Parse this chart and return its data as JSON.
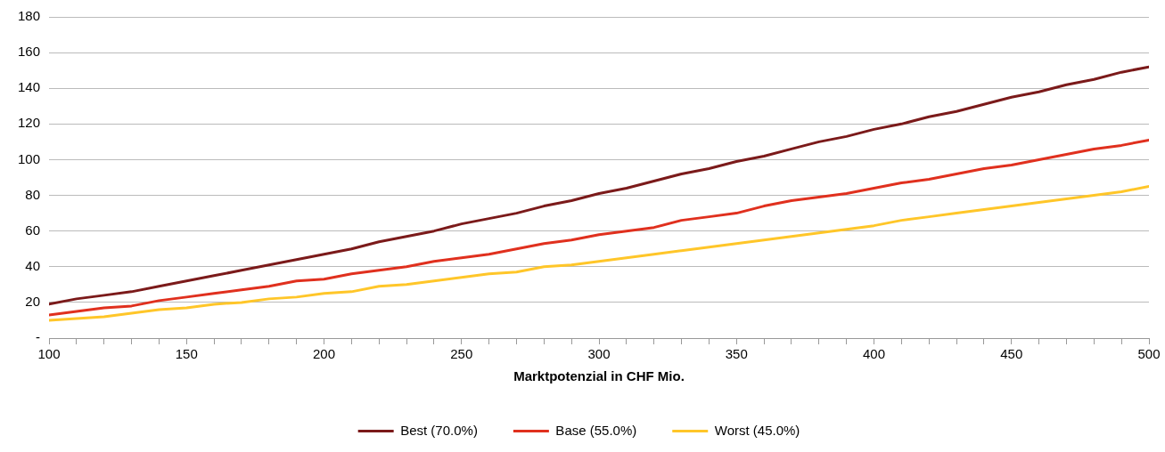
{
  "chart_data": {
    "type": "line",
    "xlabel": "Marktpotenzial in CHF Mio.",
    "x": [
      100,
      110,
      120,
      130,
      140,
      150,
      160,
      170,
      180,
      190,
      200,
      210,
      220,
      230,
      240,
      250,
      260,
      270,
      280,
      290,
      300,
      310,
      320,
      330,
      340,
      350,
      360,
      370,
      380,
      390,
      400,
      410,
      420,
      430,
      440,
      450,
      460,
      470,
      480,
      490,
      500
    ],
    "series": [
      {
        "name": "Best (70.0%)",
        "color": "#7b1a1a",
        "values": [
          19,
          22,
          24,
          26,
          29,
          32,
          35,
          38,
          41,
          44,
          47,
          50,
          54,
          57,
          60,
          64,
          67,
          70,
          74,
          77,
          81,
          84,
          88,
          92,
          95,
          99,
          102,
          106,
          110,
          113,
          117,
          120,
          124,
          127,
          131,
          135,
          138,
          142,
          145,
          149,
          152
        ]
      },
      {
        "name": "Base (55.0%)",
        "color": "#e0301e",
        "values": [
          13,
          15,
          17,
          18,
          21,
          23,
          25,
          27,
          29,
          32,
          33,
          36,
          38,
          40,
          43,
          45,
          47,
          50,
          53,
          55,
          58,
          60,
          62,
          66,
          68,
          70,
          74,
          77,
          79,
          81,
          84,
          87,
          89,
          92,
          95,
          97,
          100,
          103,
          106,
          108,
          111
        ]
      },
      {
        "name": "Worst (45.0%)",
        "color": "#ffc629",
        "values": [
          10,
          11,
          12,
          14,
          16,
          17,
          19,
          20,
          22,
          23,
          25,
          26,
          29,
          30,
          32,
          34,
          36,
          37,
          40,
          41,
          43,
          45,
          47,
          49,
          51,
          53,
          55,
          57,
          59,
          61,
          63,
          66,
          68,
          70,
          72,
          74,
          76,
          78,
          80,
          82,
          85
        ]
      }
    ],
    "xlim": [
      100,
      500
    ],
    "xticks": [
      100,
      {
        "value": 110,
        "label": null
      },
      {
        "value": 120,
        "label": null
      },
      {
        "value": 130,
        "label": null
      },
      {
        "value": 140,
        "label": null
      },
      150,
      {
        "value": 160,
        "label": null
      },
      {
        "value": 170,
        "label": null
      },
      {
        "value": 180,
        "label": null
      },
      {
        "value": 190,
        "label": null
      },
      200,
      {
        "value": 210,
        "label": null
      },
      {
        "value": 220,
        "label": null
      },
      {
        "value": 230,
        "label": null
      },
      {
        "value": 240,
        "label": null
      },
      250,
      {
        "value": 260,
        "label": null
      },
      {
        "value": 270,
        "label": null
      },
      {
        "value": 280,
        "label": null
      },
      {
        "value": 290,
        "label": null
      },
      300,
      {
        "value": 310,
        "label": null
      },
      {
        "value": 320,
        "label": null
      },
      {
        "value": 330,
        "label": null
      },
      {
        "value": 340,
        "label": null
      },
      350,
      {
        "value": 360,
        "label": null
      },
      {
        "value": 370,
        "label": null
      },
      {
        "value": 380,
        "label": null
      },
      {
        "value": 390,
        "label": null
      },
      400,
      {
        "value": 410,
        "label": null
      },
      {
        "value": 420,
        "label": null
      },
      {
        "value": 430,
        "label": null
      },
      {
        "value": 440,
        "label": null
      },
      450,
      {
        "value": 460,
        "label": null
      },
      {
        "value": 470,
        "label": null
      },
      {
        "value": 480,
        "label": null
      },
      {
        "value": 490,
        "label": null
      },
      500
    ],
    "ylim": [
      0,
      180
    ],
    "yticks": [
      {
        "value": 0,
        "label": "-"
      },
      20,
      40,
      60,
      80,
      100,
      120,
      140,
      160,
      180
    ],
    "grid": "y",
    "legend": "bottom",
    "marker": "none",
    "line_style": "solid"
  }
}
